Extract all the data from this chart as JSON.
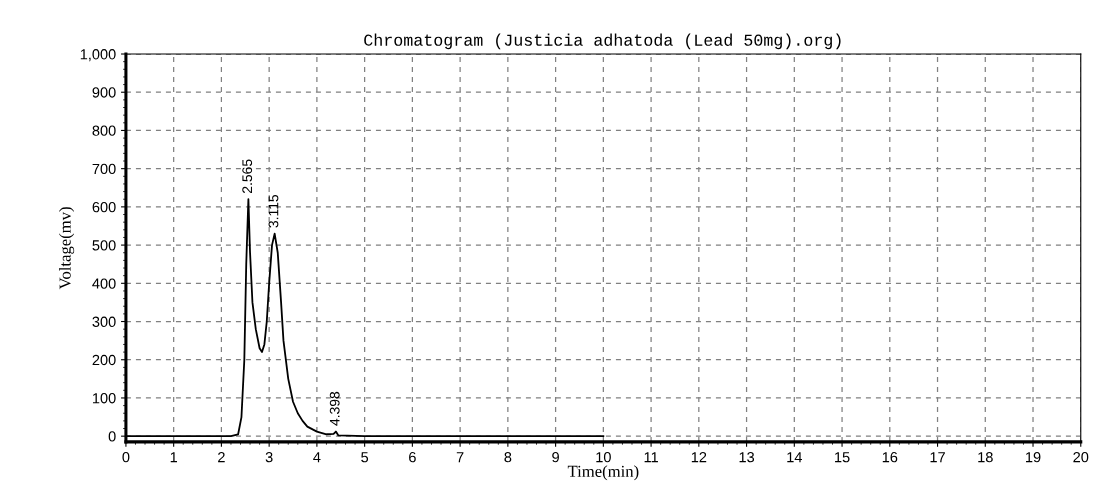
{
  "chart_data": {
    "type": "line",
    "title": "Chromatogram (Justicia adhatoda (Lead 50mg).org)",
    "xlabel": "Time(min)",
    "ylabel": "Voltage(mv)",
    "series": [
      {
        "color": "#000000",
        "x": [
          0,
          2.2,
          2.35,
          2.42,
          2.48,
          2.52,
          2.565,
          2.6,
          2.65,
          2.72,
          2.8,
          2.85,
          2.9,
          2.95,
          3.0,
          3.06,
          3.115,
          3.18,
          3.25,
          3.3,
          3.4,
          3.5,
          3.6,
          3.7,
          3.8,
          4.0,
          4.2,
          4.35,
          4.398,
          4.45,
          5,
          10
        ],
        "values": [
          0,
          0,
          5,
          50,
          200,
          450,
          620,
          480,
          350,
          280,
          230,
          220,
          240,
          300,
          400,
          500,
          530,
          480,
          350,
          250,
          150,
          90,
          60,
          40,
          25,
          12,
          5,
          6,
          12,
          2,
          0,
          0
        ]
      }
    ],
    "annotations": [
      {
        "text": "2.565",
        "x": 2.565,
        "y": 620
      },
      {
        "text": "3.115",
        "x": 3.115,
        "y": 530
      },
      {
        "text": "4.398",
        "x": 4.398,
        "y": 12
      }
    ],
    "xlim": [
      0,
      20
    ],
    "xticks": [
      0,
      1,
      2,
      3,
      4,
      5,
      6,
      7,
      8,
      9,
      10,
      11,
      12,
      13,
      14,
      15,
      16,
      17,
      18,
      19,
      20
    ],
    "ylim": [
      -15,
      1000
    ],
    "yticks": [
      0,
      100,
      200,
      300,
      400,
      500,
      600,
      700,
      800,
      900,
      {
        "value": 1000,
        "label": "1,000"
      }
    ],
    "grid": true,
    "legend": false,
    "line_style": "solid",
    "marker": "none"
  }
}
